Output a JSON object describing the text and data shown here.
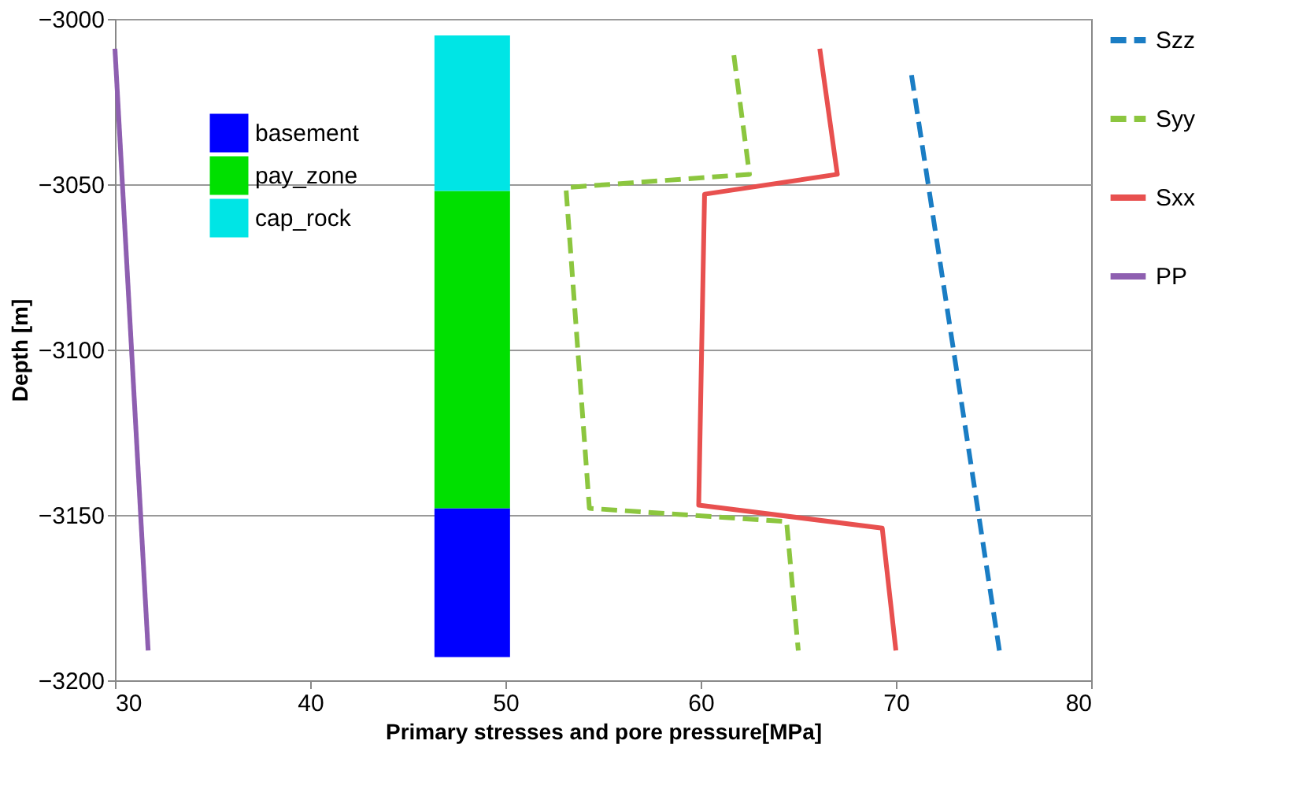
{
  "chart_data": {
    "type": "line",
    "xlabel": "Primary stresses and pore pressure[MPa]",
    "ylabel": "Depth [m]",
    "xlim": [
      30,
      80
    ],
    "xticks": [
      30,
      40,
      50,
      60,
      70,
      80
    ],
    "ylim": [
      -3200,
      -3000
    ],
    "yticks": [
      -3200,
      -3150,
      -3100,
      -3050,
      -3000
    ],
    "grid": "y",
    "legend": "right",
    "series": [
      {
        "name": "basement",
        "type": "bar",
        "color": "#0000ff",
        "x": [
          48.3
        ],
        "base": [
          -3193
        ],
        "values": [
          45
        ]
      },
      {
        "name": "pay_zone",
        "type": "bar",
        "color": "#00e000",
        "x": [
          48.3
        ],
        "base": [
          -3148
        ],
        "values": [
          96
        ]
      },
      {
        "name": "cap_rock",
        "type": "bar",
        "color": "#00e5e5",
        "x": [
          48.3
        ],
        "base": [
          -3052
        ],
        "values": [
          47
        ]
      },
      {
        "name": "Szz",
        "color": "#1a7dc4",
        "line_style": "dashed",
        "x": [
          70.8,
          75.3
        ],
        "values": [
          -3017,
          -3191
        ]
      },
      {
        "name": "Syy",
        "color": "#8cc63f",
        "line_style": "dashed",
        "x": [
          61.7,
          62.5,
          53.1,
          54.3,
          64.4,
          65.0
        ],
        "values": [
          -3011,
          -3047,
          -3051,
          -3148,
          -3152,
          -3191
        ]
      },
      {
        "name": "Sxx",
        "color": "#e8504f",
        "line_style": "solid",
        "x": [
          66.1,
          67.0,
          60.2,
          59.9,
          69.3,
          70.0
        ],
        "values": [
          -3009,
          -3047,
          -3053,
          -3147,
          -3154,
          -3191
        ]
      },
      {
        "name": "PP",
        "color": "#8e5fb0",
        "line_style": "solid",
        "x": [
          30.0,
          31.7
        ],
        "values": [
          -3009,
          -3191
        ]
      }
    ]
  }
}
